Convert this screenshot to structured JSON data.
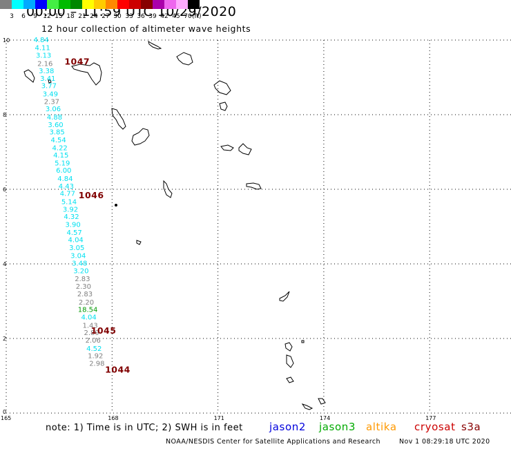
{
  "title": "00:00 – 11:59 UTC 10/29/2020",
  "subtitle": "12 hour collection of altimeter wave heights",
  "colorbar": {
    "colors": [
      "#808080",
      "#00ffff",
      "#00aaff",
      "#0000ff",
      "#44ee44",
      "#00bb00",
      "#008800",
      "#ffff00",
      "#ffcc00",
      "#ff8800",
      "#ff0000",
      "#cc0000",
      "#880000",
      "#aa00aa",
      "#ee66ee",
      "#ffaaff",
      "#000000"
    ],
    "labels": [
      "3",
      "6",
      "9",
      "12",
      "15",
      "18",
      "21",
      "24",
      "27",
      "30",
      "33",
      "36",
      "39",
      "42",
      "45",
      "70"
    ],
    "unit": "(ft)"
  },
  "map": {
    "lon_ticks": [
      "165",
      "168",
      "171",
      "174",
      "177"
    ],
    "lat_ticks": [
      "10",
      "8",
      "6",
      "4",
      "2",
      "0"
    ],
    "coastline_color": "#000000",
    "grid_style": "dotted"
  },
  "wave_colors": {
    "gray": "#808080",
    "cyan": "#00e0f0",
    "green": "#009900"
  },
  "wave_heights": [
    {
      "value": "4.84",
      "color": "cyan",
      "lon": 165.99,
      "lat": 9.94
    },
    {
      "value": "4.11",
      "color": "cyan",
      "lon": 166.03,
      "lat": 9.73
    },
    {
      "value": "3.13",
      "color": "cyan",
      "lon": 166.06,
      "lat": 9.53
    },
    {
      "value": "2.16",
      "color": "gray",
      "lon": 166.1,
      "lat": 9.31
    },
    {
      "value": "3.38",
      "color": "cyan",
      "lon": 166.14,
      "lat": 9.11
    },
    {
      "value": "3.41",
      "color": "cyan",
      "lon": 166.18,
      "lat": 8.91
    },
    {
      "value": "3.77",
      "color": "cyan",
      "lon": 166.21,
      "lat": 8.71
    },
    {
      "value": "3.49",
      "color": "cyan",
      "lon": 166.25,
      "lat": 8.49
    },
    {
      "value": "2.37",
      "color": "gray",
      "lon": 166.29,
      "lat": 8.29
    },
    {
      "value": "3.06",
      "color": "cyan",
      "lon": 166.33,
      "lat": 8.09
    },
    {
      "value": "4.88",
      "color": "cyan",
      "lon": 166.37,
      "lat": 7.87
    },
    {
      "value": "3.60",
      "color": "cyan",
      "lon": 166.4,
      "lat": 7.67
    },
    {
      "value": "3.85",
      "color": "cyan",
      "lon": 166.44,
      "lat": 7.47
    },
    {
      "value": "4.54",
      "color": "cyan",
      "lon": 166.48,
      "lat": 7.26
    },
    {
      "value": "4.22",
      "color": "cyan",
      "lon": 166.52,
      "lat": 7.05
    },
    {
      "value": "4.15",
      "color": "cyan",
      "lon": 166.55,
      "lat": 6.85
    },
    {
      "value": "5.19",
      "color": "cyan",
      "lon": 166.59,
      "lat": 6.64
    },
    {
      "value": "6.00",
      "color": "cyan",
      "lon": 166.63,
      "lat": 6.44
    },
    {
      "value": "4.84",
      "color": "cyan",
      "lon": 166.67,
      "lat": 6.22
    },
    {
      "value": "4.43",
      "color": "cyan",
      "lon": 166.7,
      "lat": 6.02
    },
    {
      "value": "4.77",
      "color": "cyan",
      "lon": 166.74,
      "lat": 5.82
    },
    {
      "value": "5.14",
      "color": "cyan",
      "lon": 166.78,
      "lat": 5.6
    },
    {
      "value": "3.92",
      "color": "cyan",
      "lon": 166.82,
      "lat": 5.4
    },
    {
      "value": "4.32",
      "color": "cyan",
      "lon": 166.85,
      "lat": 5.2
    },
    {
      "value": "3.90",
      "color": "cyan",
      "lon": 166.89,
      "lat": 4.99
    },
    {
      "value": "4.57",
      "color": "cyan",
      "lon": 166.93,
      "lat": 4.78
    },
    {
      "value": "4.04",
      "color": "cyan",
      "lon": 166.97,
      "lat": 4.58
    },
    {
      "value": "3.05",
      "color": "cyan",
      "lon": 167.0,
      "lat": 4.37
    },
    {
      "value": "3.04",
      "color": "cyan",
      "lon": 167.04,
      "lat": 4.16
    },
    {
      "value": "3.48",
      "color": "cyan",
      "lon": 167.08,
      "lat": 3.95
    },
    {
      "value": "3.20",
      "color": "cyan",
      "lon": 167.12,
      "lat": 3.75
    },
    {
      "value": "2.83",
      "color": "gray",
      "lon": 167.16,
      "lat": 3.54
    },
    {
      "value": "2.30",
      "color": "gray",
      "lon": 167.19,
      "lat": 3.33
    },
    {
      "value": "2.83",
      "color": "gray",
      "lon": 167.23,
      "lat": 3.13
    },
    {
      "value": "2.20",
      "color": "gray",
      "lon": 167.27,
      "lat": 2.91
    },
    {
      "value": "18.54",
      "color": "green",
      "lon": 167.31,
      "lat": 2.71
    },
    {
      "value": "4.04",
      "color": "cyan",
      "lon": 167.34,
      "lat": 2.51
    },
    {
      "value": "1.43",
      "color": "gray",
      "lon": 167.38,
      "lat": 2.29
    },
    {
      "value": "2.89",
      "color": "gray",
      "lon": 167.42,
      "lat": 2.09
    },
    {
      "value": "2.06",
      "color": "gray",
      "lon": 167.46,
      "lat": 1.89
    },
    {
      "value": "4.52",
      "color": "cyan",
      "lon": 167.49,
      "lat": 1.67
    },
    {
      "value": "1.92",
      "color": "gray",
      "lon": 167.53,
      "lat": 1.47
    },
    {
      "value": "2.98",
      "color": "gray",
      "lon": 167.57,
      "lat": 1.27
    }
  ],
  "cycle_labels": [
    {
      "text": "1047",
      "color": "#800000",
      "lon": 166.65,
      "lat": 9.34
    },
    {
      "text": "1046",
      "color": "#800000",
      "lon": 167.05,
      "lat": 5.76
    },
    {
      "text": "1045",
      "color": "#800000",
      "lon": 167.4,
      "lat": 2.13
    },
    {
      "text": "1044",
      "color": "#800000",
      "lon": 167.8,
      "lat": 1.08
    }
  ],
  "footer": {
    "note": "note:  1) Time is in UTC;  2) SWH is in feet",
    "satellites": [
      {
        "name": "jason2",
        "color": "#0000dd"
      },
      {
        "name": "jason3",
        "color": "#00aa00"
      },
      {
        "name": "altika",
        "color": "#ff9900"
      },
      {
        "name": "cryosat",
        "color": "#cc0000"
      },
      {
        "name": "s3a",
        "color": "#880000"
      }
    ],
    "credit": "NOAA/NESDIS Center for Satellite Applications and Research",
    "timestamp": "Nov  1 08:29:18 UTC 2020"
  }
}
